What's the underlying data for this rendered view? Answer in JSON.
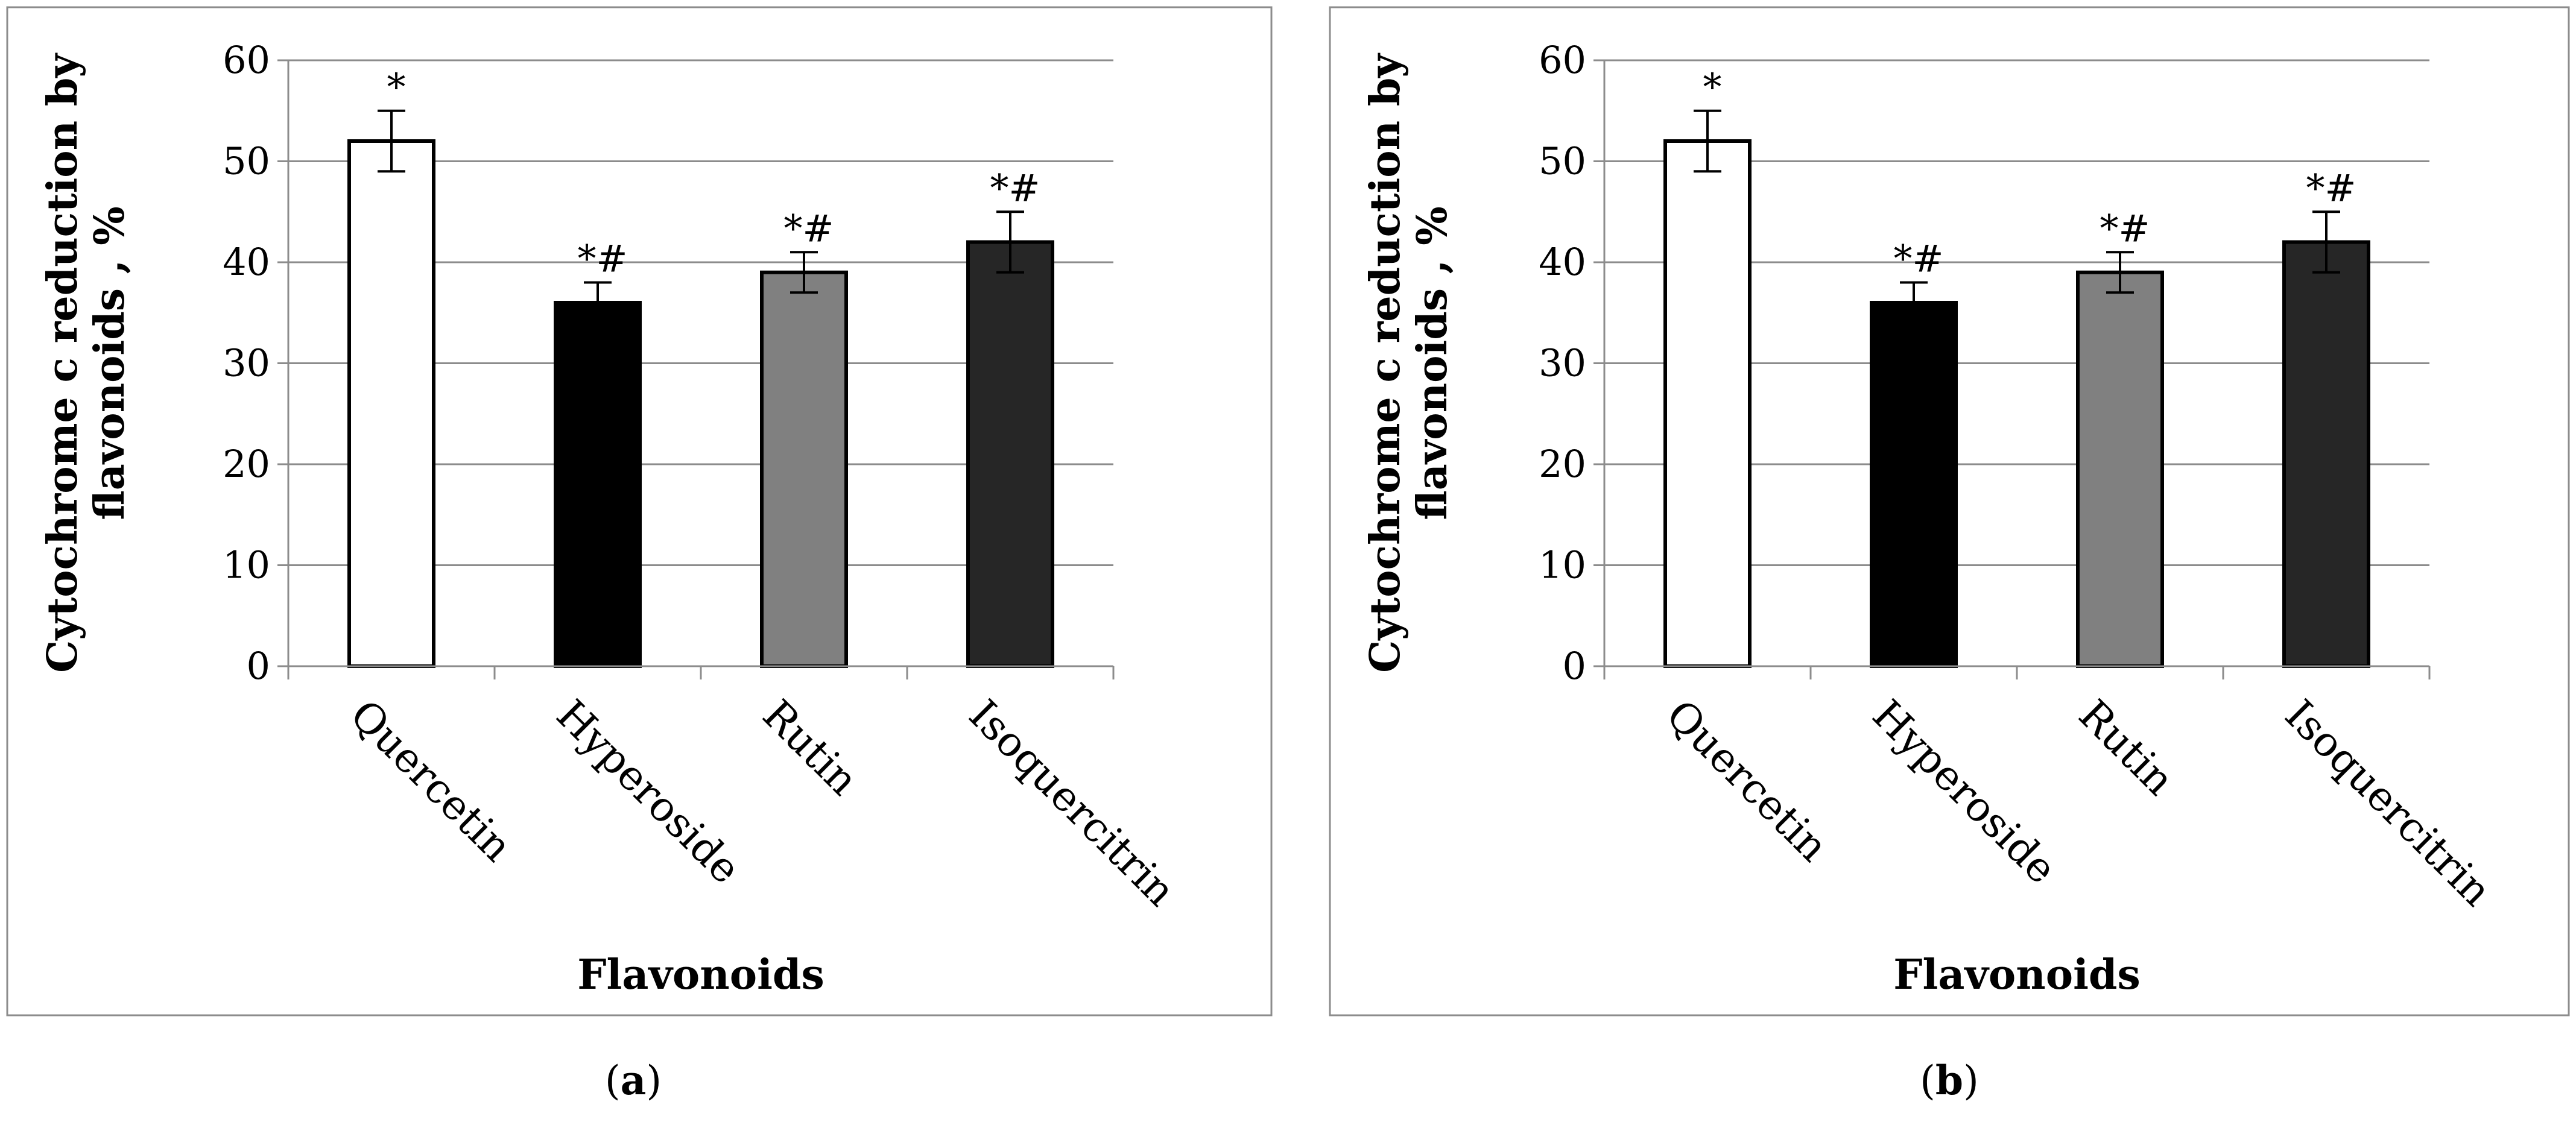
{
  "chart_data": [
    {
      "type": "bar",
      "panel_caption": {
        "open": "(",
        "letter": "a",
        "close": ")"
      },
      "categories": [
        "Quercetin",
        "Hyperoside",
        "Rutin",
        "Isoquercitrin"
      ],
      "values": [
        52,
        36,
        39,
        42
      ],
      "errors": [
        3,
        2,
        2,
        3
      ],
      "significance": [
        "*",
        "*#",
        "*#",
        "*#"
      ],
      "bar_colors": [
        "#ffffff",
        "#000000",
        "#808080",
        "#262626"
      ],
      "ylabel_lines": [
        "Cytochrome c reduction by",
        "flavonoids , %"
      ],
      "xlabel": "Flavonoids",
      "ylim": [
        0,
        60
      ],
      "yticks": [
        0,
        10,
        20,
        30,
        40,
        50,
        60
      ],
      "grid": true
    },
    {
      "type": "bar",
      "panel_caption": {
        "open": "(",
        "letter": "b",
        "close": ")"
      },
      "categories": [
        "Quercetin",
        "Hyperoside",
        "Rutin",
        "Isoquercitrin"
      ],
      "values": [
        52,
        36,
        39,
        42
      ],
      "errors": [
        3,
        2,
        2,
        3
      ],
      "significance": [
        "*",
        "*#",
        "*#",
        "*#"
      ],
      "bar_colors": [
        "#ffffff",
        "#000000",
        "#808080",
        "#262626"
      ],
      "ylabel_lines": [
        "Cytochrome c reduction by",
        "flavonoids , %"
      ],
      "xlabel": "Flavonoids",
      "ylim": [
        0,
        60
      ],
      "yticks": [
        0,
        10,
        20,
        30,
        40,
        50,
        60
      ],
      "grid": true
    }
  ]
}
